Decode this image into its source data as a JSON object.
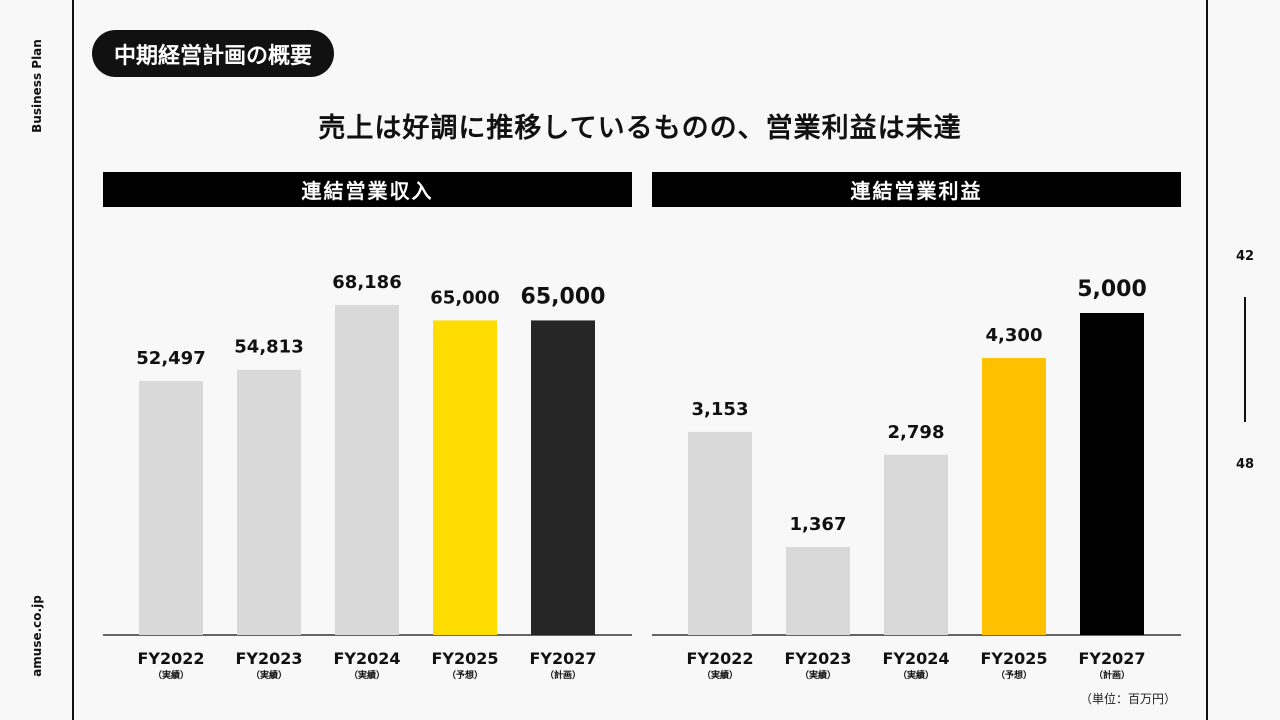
{
  "sidebar": {
    "top_text": "Business Plan",
    "bottom_text": "amuse.co.jp"
  },
  "section_title": "中期経営計画の概要",
  "headline": "売上は好調に推移しているものの、営業利益は未達",
  "pagination": {
    "current": "42",
    "total": "48"
  },
  "unit_note": "（単位：百万円）",
  "chart_data": [
    {
      "type": "bar",
      "title": "連結営業収入",
      "categories": [
        "FY2022",
        "FY2023",
        "FY2024",
        "FY2025",
        "FY2027"
      ],
      "sublabels": [
        "（実績）",
        "（実績）",
        "（実績）",
        "（予想）",
        "（計画）"
      ],
      "values": [
        52497,
        54813,
        68186,
        65000,
        65000
      ],
      "value_labels": [
        "52,497",
        "54,813",
        "68,186",
        "65,000",
        "65,000"
      ],
      "colors": [
        "#d9d9d9",
        "#d9d9d9",
        "#d9d9d9",
        "#ffdd00",
        "#262626"
      ],
      "ylim": [
        0,
        68186
      ],
      "grid": false
    },
    {
      "type": "bar",
      "title": "連結営業利益",
      "categories": [
        "FY2022",
        "FY2023",
        "FY2024",
        "FY2025",
        "FY2027"
      ],
      "sublabels": [
        "（実績）",
        "（実績）",
        "（実績）",
        "（予想）",
        "（計画）"
      ],
      "values": [
        3153,
        1367,
        2798,
        4300,
        5000
      ],
      "value_labels": [
        "3,153",
        "1,367",
        "2,798",
        "4,300",
        "5,000"
      ],
      "colors": [
        "#d9d9d9",
        "#d9d9d9",
        "#d9d9d9",
        "#ffc000",
        "#000000"
      ],
      "ylim": [
        0,
        5000
      ],
      "grid": false
    }
  ]
}
